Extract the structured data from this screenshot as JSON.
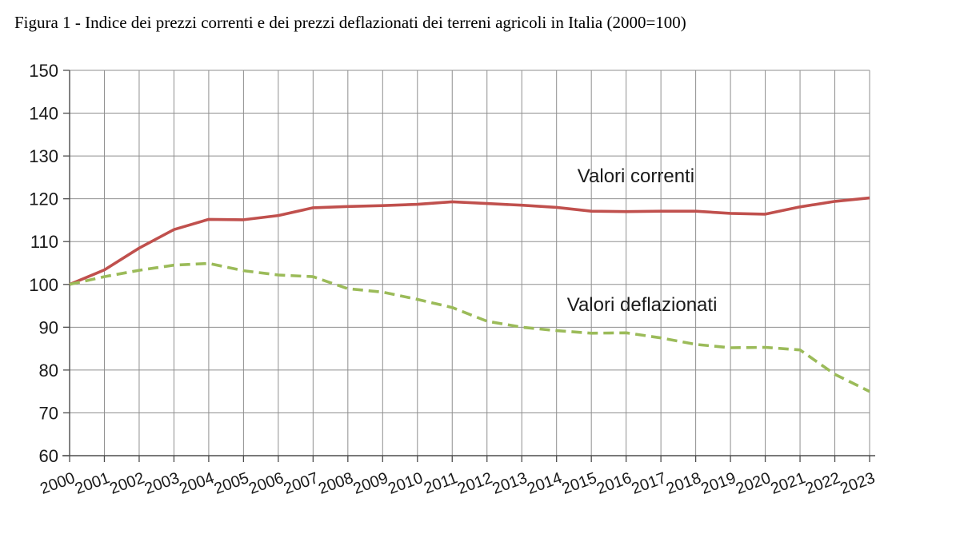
{
  "figure": {
    "title": "Figura 1 - Indice dei prezzi correnti e dei prezzi deflazionati dei terreni agricoli in Italia (2000=100)"
  },
  "chart_data": {
    "type": "line",
    "title": "Figura 1 - Indice dei prezzi correnti e dei prezzi deflazionati dei terreni agricoli in Italia (2000=100)",
    "x": [
      2000,
      2001,
      2002,
      2003,
      2004,
      2005,
      2006,
      2007,
      2008,
      2009,
      2010,
      2011,
      2012,
      2013,
      2014,
      2015,
      2016,
      2017,
      2018,
      2019,
      2020,
      2021,
      2022,
      2023
    ],
    "yticks": [
      60,
      70,
      80,
      90,
      100,
      110,
      120,
      130,
      140,
      150
    ],
    "ylim": [
      60,
      150
    ],
    "grid": "both",
    "legend_position": "inline-annotations",
    "series": [
      {
        "name": "Valori correnti",
        "style": "solid",
        "color": "#c0504d",
        "values": [
          100.0,
          103.4,
          108.5,
          112.8,
          115.2,
          115.1,
          116.1,
          117.9,
          118.2,
          118.4,
          118.7,
          119.3,
          118.9,
          118.5,
          118.0,
          117.1,
          117.0,
          117.1,
          117.1,
          116.6,
          116.4,
          118.1,
          119.4,
          120.2
        ]
      },
      {
        "name": "Valori deflazionati",
        "style": "dashed",
        "color": "#9bbb59",
        "values": [
          100.0,
          101.8,
          103.3,
          104.5,
          104.9,
          103.2,
          102.2,
          101.8,
          99.0,
          98.2,
          96.5,
          94.6,
          91.4,
          90.0,
          89.2,
          88.6,
          88.7,
          87.5,
          86.0,
          85.2,
          85.3,
          84.7,
          79.0,
          75.0
        ]
      }
    ],
    "annotations": [
      {
        "text": "Valori correnti",
        "x": 2014.6,
        "y": 123.3
      },
      {
        "text": "Valori deflazionati",
        "x": 2014.3,
        "y": 93.2
      }
    ]
  },
  "colors": {
    "grid": "#8f8f8f",
    "axis": "#4d4d4d",
    "text": "#1a1a1a",
    "background": "#ffffff"
  }
}
